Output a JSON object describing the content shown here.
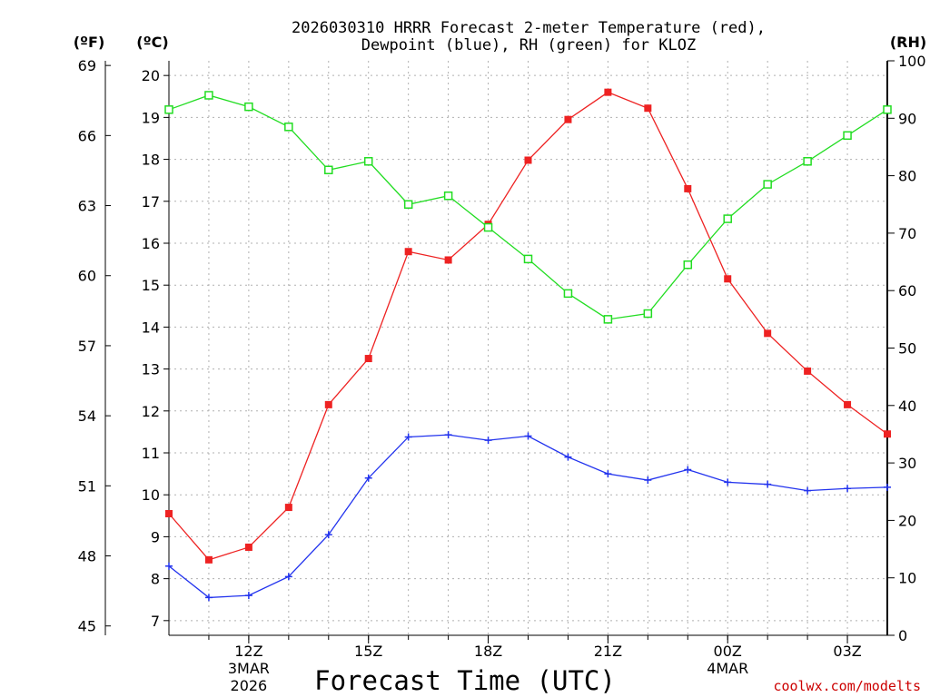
{
  "chart_data": {
    "type": "line",
    "title_line1": "2026030310 HRRR Forecast 2-meter Temperature (red),",
    "title_line2": "Dewpoint (blue), RH (green) for KLOZ",
    "xlabel": "Forecast Time (UTC)",
    "credit": "coolwx.com/modelts",
    "left_outer_axis": {
      "unit": "(ºF)",
      "ylim": [
        44.6,
        69.2
      ],
      "ticks": [
        45,
        48,
        51,
        54,
        57,
        60,
        63,
        66,
        69
      ]
    },
    "left_inner_axis": {
      "unit": "(ºC)",
      "ylim": [
        6.65,
        20.35
      ],
      "ticks": [
        7,
        8,
        9,
        10,
        11,
        12,
        13,
        14,
        15,
        16,
        17,
        18,
        19,
        20
      ]
    },
    "right_axis": {
      "unit": "(RH)",
      "ylim": [
        0,
        100
      ],
      "ticks": [
        0,
        10,
        20,
        30,
        40,
        50,
        60,
        70,
        80,
        90,
        100
      ]
    },
    "x_range_hours": [
      10,
      28
    ],
    "x_ticks": [
      {
        "hour": 12,
        "label": "12Z",
        "sub1": "3MAR",
        "sub2": "2026"
      },
      {
        "hour": 15,
        "label": "15Z",
        "sub1": "",
        "sub2": ""
      },
      {
        "hour": 18,
        "label": "18Z",
        "sub1": "",
        "sub2": ""
      },
      {
        "hour": 21,
        "label": "21Z",
        "sub1": "",
        "sub2": ""
      },
      {
        "hour": 24,
        "label": "00Z",
        "sub1": "4MAR",
        "sub2": ""
      },
      {
        "hour": 27,
        "label": "03Z",
        "sub1": "",
        "sub2": ""
      }
    ],
    "x": [
      10,
      11,
      12,
      13,
      14,
      15,
      16,
      17,
      18,
      19,
      20,
      21,
      22,
      23,
      24,
      25,
      26,
      27,
      28
    ],
    "series": [
      {
        "name": "Temperature",
        "axis": "C",
        "color": "#ee2222",
        "marker": "filled-square",
        "values": [
          9.55,
          8.45,
          8.75,
          9.7,
          12.15,
          13.25,
          15.8,
          15.6,
          16.45,
          17.98,
          18.95,
          19.6,
          19.22,
          17.3,
          15.15,
          13.85,
          12.95,
          12.15,
          11.45
        ]
      },
      {
        "name": "Dewpoint",
        "axis": "C",
        "color": "#2233ee",
        "marker": "plus",
        "values": [
          8.3,
          7.55,
          7.6,
          8.05,
          9.05,
          10.4,
          11.38,
          11.43,
          11.3,
          11.4,
          10.9,
          10.5,
          10.35,
          10.6,
          10.3,
          10.25,
          10.1,
          10.15,
          10.18
        ]
      },
      {
        "name": "RH",
        "axis": "RH",
        "color": "#22dd22",
        "marker": "open-square",
        "values": [
          91.5,
          94.0,
          92.0,
          88.5,
          81.0,
          82.5,
          75.0,
          76.5,
          71.0,
          65.5,
          59.5,
          55.0,
          56.0,
          64.5,
          72.5,
          78.5,
          82.5,
          87.0,
          91.5
        ]
      }
    ]
  }
}
